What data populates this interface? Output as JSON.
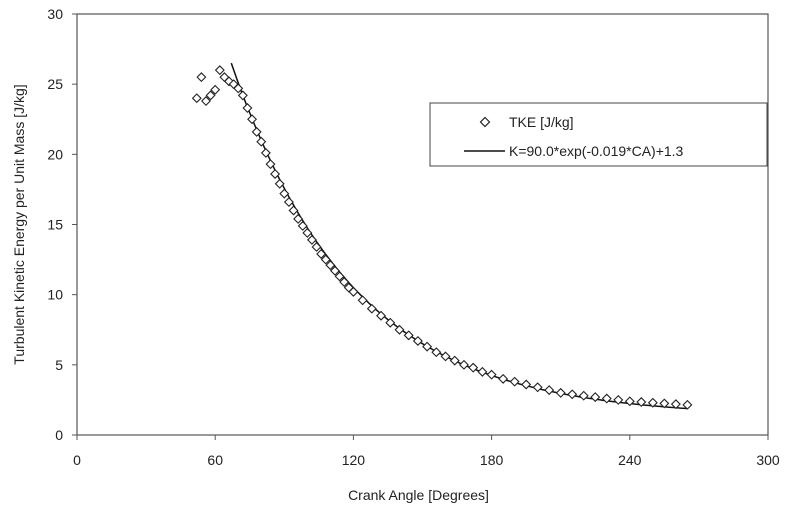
{
  "chart_data": {
    "type": "scatter",
    "xlabel": "Crank Angle [Degrees]",
    "ylabel": "Turbulent Kinetic Energy per Unit Mass [J/kg]",
    "xlim": [
      0,
      300
    ],
    "ylim": [
      0,
      30
    ],
    "x_ticks": [
      "0",
      "60",
      "120",
      "180",
      "240",
      "300"
    ],
    "y_ticks": [
      "0",
      "5",
      "10",
      "15",
      "20",
      "25",
      "30"
    ],
    "grid": false,
    "legend_position": "top-right",
    "series": [
      {
        "name": "TKE [J/kg]",
        "kind": "scatter",
        "marker": "diamond",
        "x": [
          52,
          54,
          56,
          58,
          60,
          62,
          64,
          66,
          68,
          70,
          72,
          74,
          76,
          78,
          80,
          82,
          84,
          86,
          88,
          90,
          92,
          94,
          96,
          98,
          100,
          102,
          104,
          106,
          108,
          110,
          112,
          114,
          116,
          118,
          120,
          124,
          128,
          132,
          136,
          140,
          144,
          148,
          152,
          156,
          160,
          164,
          168,
          172,
          176,
          180,
          185,
          190,
          195,
          200,
          205,
          210,
          215,
          220,
          225,
          230,
          235,
          240,
          245,
          250,
          255,
          260,
          265
        ],
        "y": [
          24.0,
          25.5,
          23.8,
          24.2,
          24.6,
          26.0,
          25.5,
          25.2,
          25.0,
          24.7,
          24.2,
          23.3,
          22.5,
          21.6,
          20.9,
          20.1,
          19.3,
          18.6,
          17.9,
          17.2,
          16.6,
          16.0,
          15.4,
          14.9,
          14.4,
          13.9,
          13.4,
          12.9,
          12.5,
          12.1,
          11.7,
          11.3,
          10.9,
          10.5,
          10.2,
          9.6,
          9.0,
          8.5,
          8.0,
          7.5,
          7.1,
          6.7,
          6.3,
          5.9,
          5.6,
          5.3,
          5.0,
          4.8,
          4.5,
          4.3,
          4.0,
          3.8,
          3.6,
          3.4,
          3.2,
          3.0,
          2.9,
          2.8,
          2.7,
          2.6,
          2.5,
          2.4,
          2.35,
          2.3,
          2.25,
          2.2,
          2.15
        ]
      },
      {
        "name": "K=90.0*exp(-0.019*CA)+1.3",
        "kind": "line",
        "function": {
          "a": 90.0,
          "b": -0.019,
          "c": 1.3
        },
        "x_range": [
          67,
          265
        ]
      }
    ]
  }
}
